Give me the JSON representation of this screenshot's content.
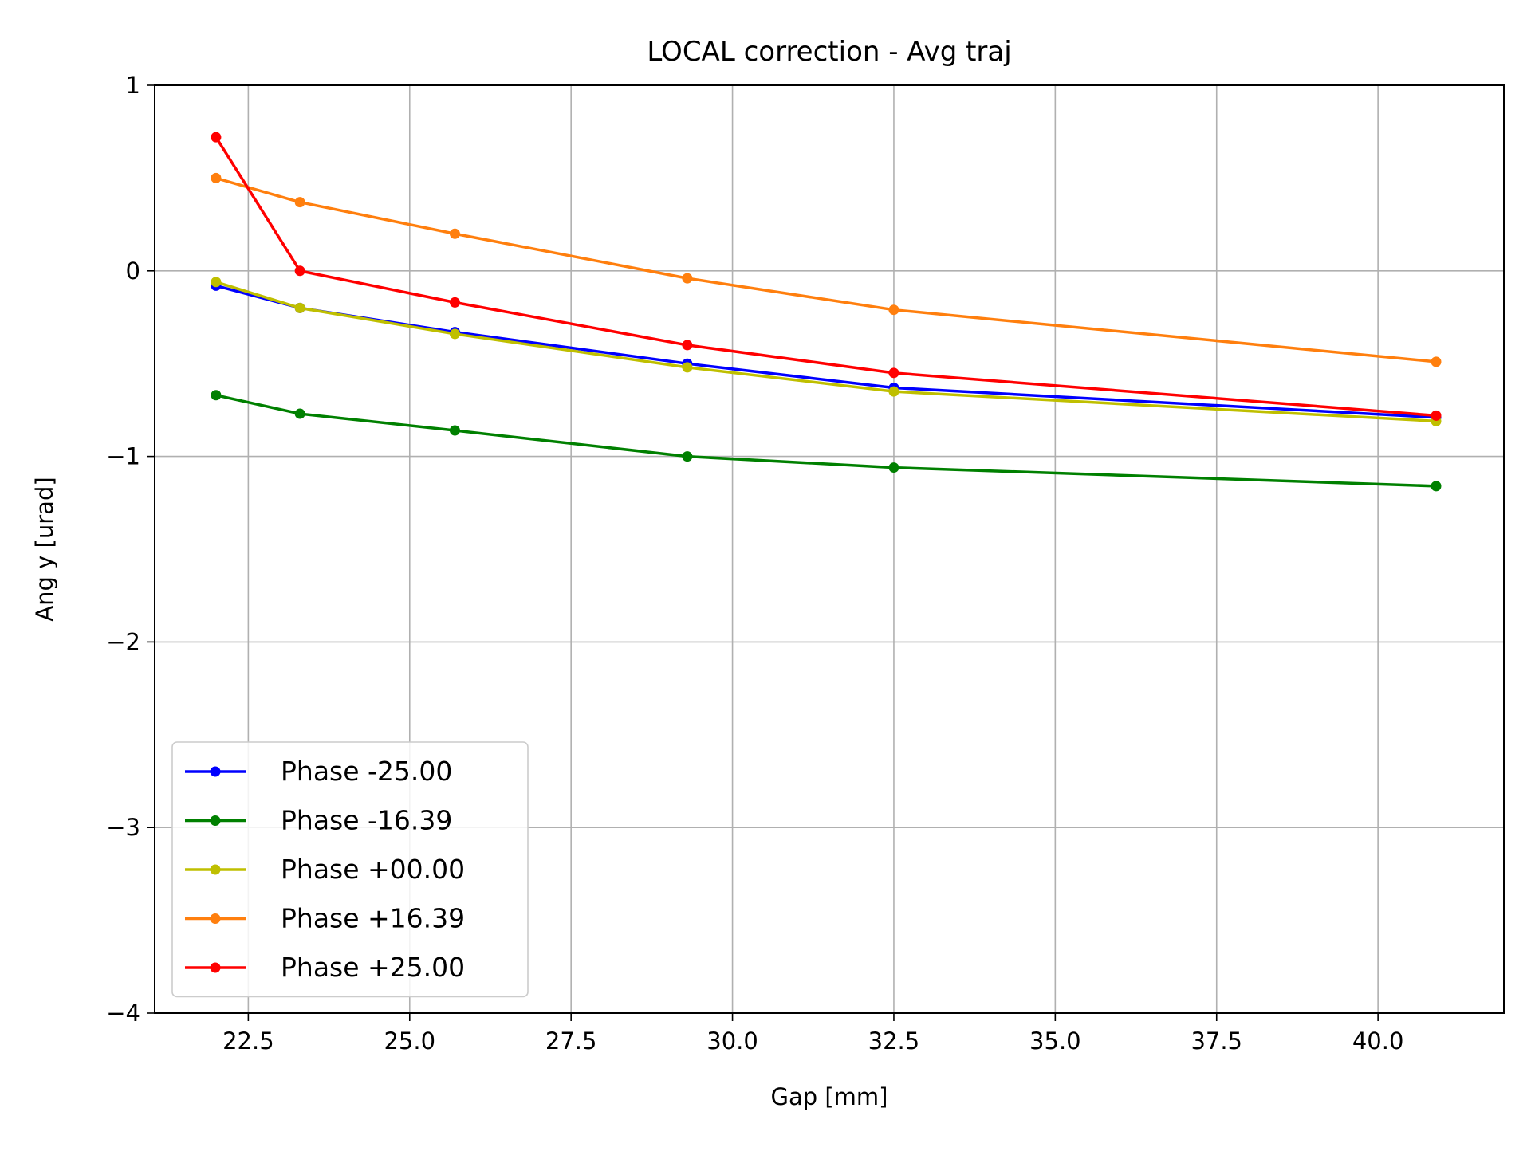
{
  "chart_data": {
    "type": "line",
    "title": "LOCAL correction - Avg traj",
    "xlabel": "Gap [mm]",
    "ylabel": "Ang y [urad]",
    "xlim": [
      21.05,
      41.95
    ],
    "ylim": [
      -4,
      1
    ],
    "xticks": [
      22.5,
      25.0,
      27.5,
      30.0,
      32.5,
      35.0,
      37.5,
      40.0
    ],
    "xtick_labels": [
      "22.5",
      "25.0",
      "27.5",
      "30.0",
      "32.5",
      "35.0",
      "37.5",
      "40.0"
    ],
    "yticks": [
      1,
      0,
      -1,
      -2,
      -3,
      -4
    ],
    "ytick_labels": [
      "1",
      "0",
      "−1",
      "−2",
      "−3",
      "−4"
    ],
    "grid": true,
    "legend_position": "lower-left",
    "x": [
      22.0,
      23.3,
      25.7,
      29.3,
      32.5,
      40.9
    ],
    "series": [
      {
        "name": "Phase -25.00",
        "color": "#0000ff",
        "values": [
          -0.08,
          -0.2,
          -0.33,
          -0.5,
          -0.63,
          -0.79
        ]
      },
      {
        "name": "Phase -16.39",
        "color": "#008000",
        "values": [
          -0.67,
          -0.77,
          -0.86,
          -1.0,
          -1.06,
          -1.16
        ]
      },
      {
        "name": "Phase +00.00",
        "color": "#bfbf00",
        "values": [
          -0.06,
          -0.2,
          -0.34,
          -0.52,
          -0.65,
          -0.81
        ]
      },
      {
        "name": "Phase +16.39",
        "color": "#ff7f0e",
        "values": [
          0.5,
          0.37,
          0.2,
          -0.04,
          -0.21,
          -0.49
        ]
      },
      {
        "name": "Phase +25.00",
        "color": "#ff0000",
        "values": [
          0.72,
          0.0,
          -0.17,
          -0.4,
          -0.55,
          -0.78
        ]
      }
    ]
  }
}
